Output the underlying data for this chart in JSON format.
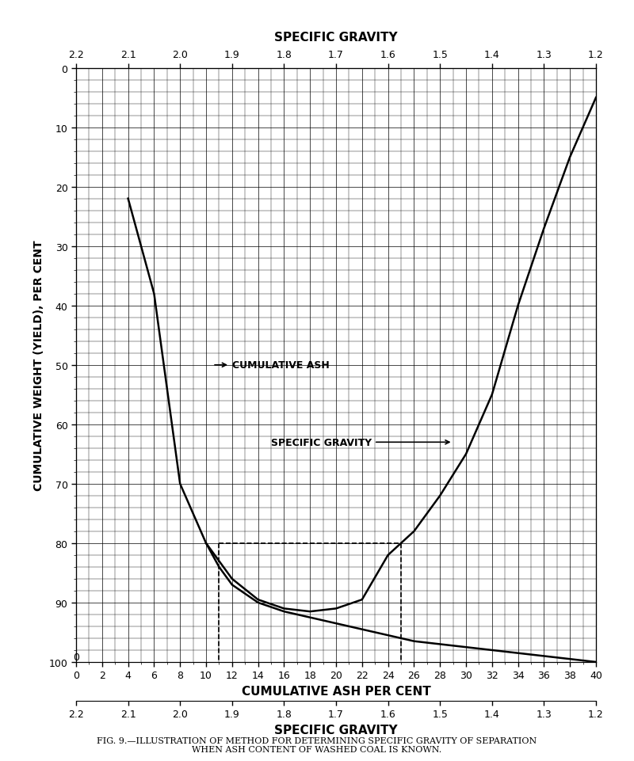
{
  "title": "",
  "ylabel": "CUMULATIVE WEIGHT (YIELD), PER CENT",
  "xlabel_top": "CUMULATIVE ASH PER CENT",
  "xlabel_bottom": "SPECIFIC GRAVITY",
  "caption": "FIG. 9.—ILLUSTRATION OF METHOD FOR DETERMINING SPECIFIC GRAVITY OF SEPARATION\nWHEN ASH CONTENT OF WASHED COAL IS KNOWN.",
  "ylim": [
    0,
    100
  ],
  "xlim_ash": [
    0,
    40
  ],
  "xlim_sg": [
    2.2,
    1.2
  ],
  "yticks": [
    0,
    10,
    20,
    30,
    40,
    50,
    60,
    70,
    80,
    90,
    100
  ],
  "xticks_ash": [
    0,
    2,
    4,
    6,
    8,
    10,
    12,
    14,
    16,
    18,
    20,
    22,
    24,
    26,
    28,
    30,
    32,
    34,
    36,
    38,
    40
  ],
  "xticks_sg": [
    2.2,
    2.1,
    2.0,
    1.9,
    1.8,
    1.7,
    1.6,
    1.5,
    1.4,
    1.3,
    1.2
  ],
  "cum_ash_x": [
    4,
    6,
    8,
    10,
    11,
    12,
    14,
    16,
    18,
    20,
    22,
    24,
    25,
    26,
    28,
    30,
    32,
    34,
    36,
    38,
    40
  ],
  "cum_ash_y": [
    22,
    38,
    70,
    80,
    84,
    87,
    90,
    91.5,
    92.5,
    93.5,
    94.5,
    95.5,
    96,
    96.5,
    97,
    97.5,
    98,
    98.5,
    99,
    99.5,
    100
  ],
  "sg_x": [
    10,
    11,
    12,
    14,
    16,
    18,
    20,
    22,
    24,
    25,
    26,
    28,
    30,
    32,
    34,
    36,
    38,
    40
  ],
  "sg_y": [
    80,
    83,
    86,
    89.5,
    91,
    91.5,
    91,
    89.5,
    82,
    80,
    78,
    72,
    65,
    55,
    40,
    27,
    15,
    5
  ],
  "dashed_x1": 11,
  "dashed_x2": 25,
  "dashed_y": 80,
  "label_cum_ash": "CUMULATIVE ASH",
  "label_sg": "SPECIFIC GRAVITY",
  "background_color": "#ffffff",
  "grid_color": "#000000",
  "curve_color": "#000000",
  "dashed_color": "#555555"
}
